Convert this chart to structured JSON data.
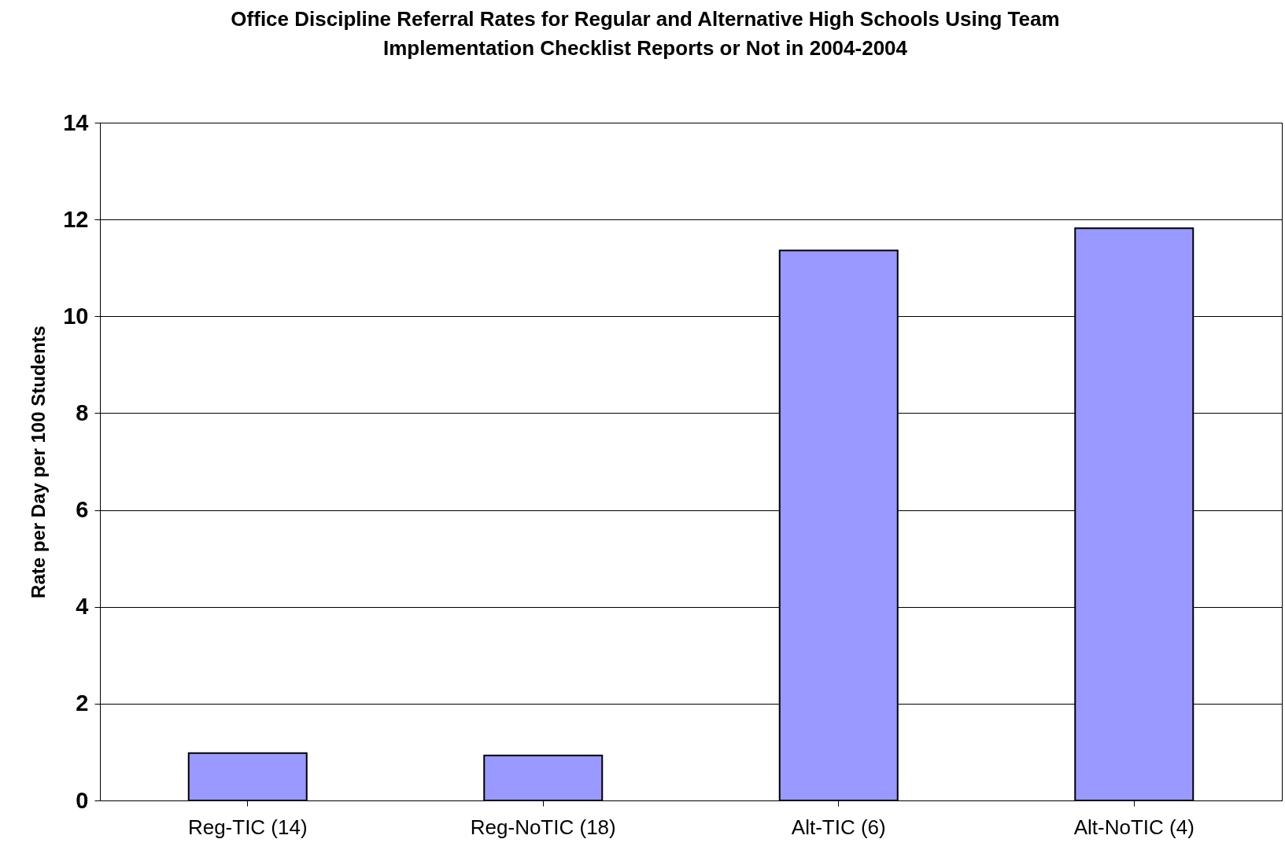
{
  "chart_data": {
    "type": "bar",
    "title": "Office Discipline Referral Rates for Regular and Alternative High Schools Using Team Implementation Checklist Reports or Not in 2004-2004",
    "ylabel": "Rate per Day per 100 Students",
    "categories": [
      "Reg-TIC (14)",
      "Reg-NoTIC (18)",
      "Alt-TIC (6)",
      "Alt-NoTIC (4)"
    ],
    "values": [
      0.98,
      0.93,
      11.36,
      11.82
    ],
    "color": "#9999ff",
    "ylim": [
      0,
      14
    ],
    "yticks": [
      0,
      2,
      4,
      6,
      8,
      10,
      12,
      14
    ],
    "grid": "y"
  }
}
